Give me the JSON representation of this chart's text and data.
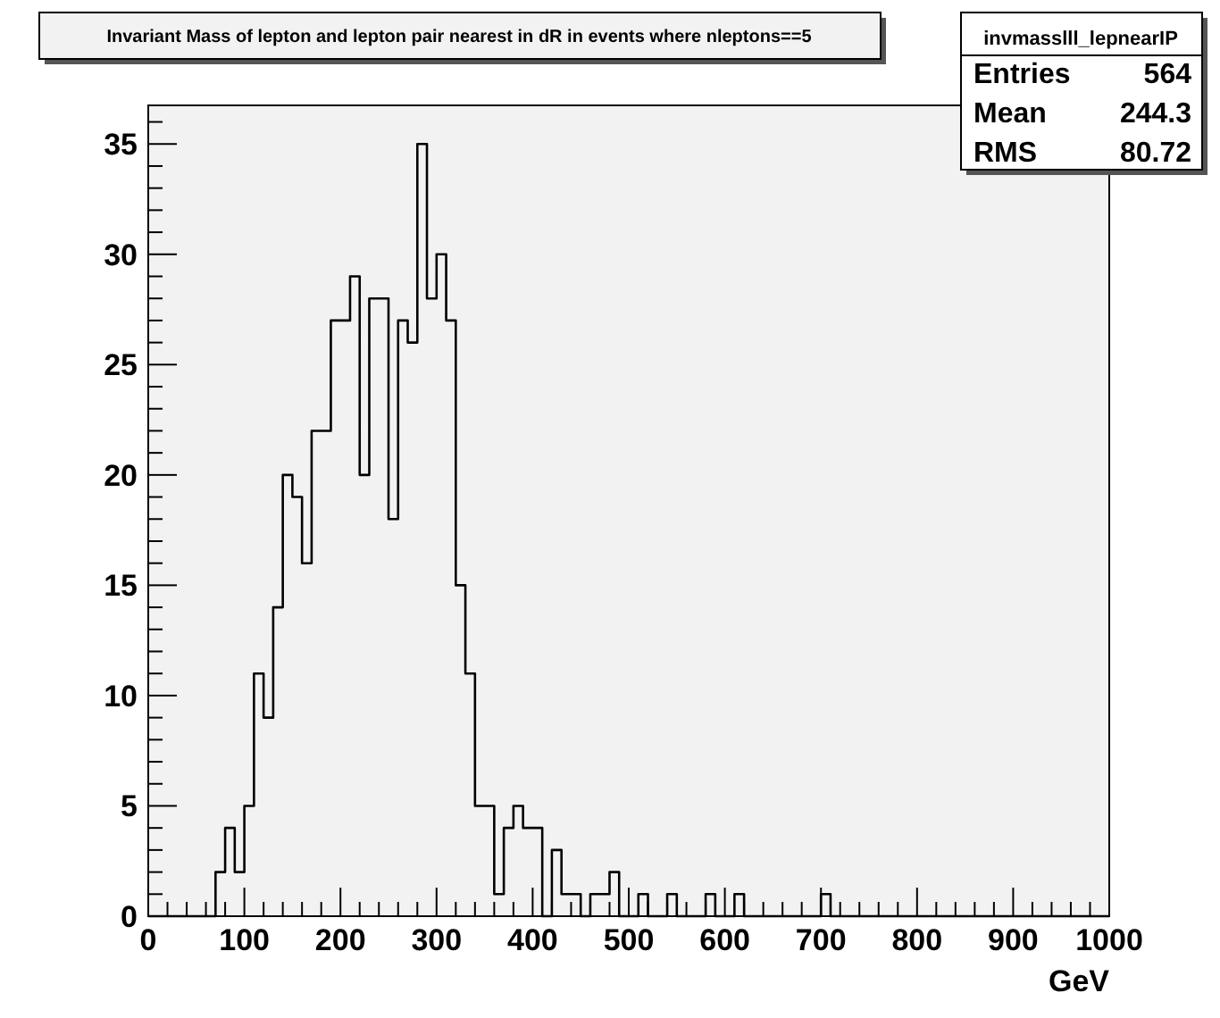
{
  "chart_data": {
    "type": "histogram",
    "title": "Invariant Mass of lepton and lepton pair nearest in dR in events where nleptons==5",
    "xlabel": "GeV",
    "annotations": [
      "invmasslll_lepnearIP",
      "Entries",
      "564",
      "Mean",
      "244.3",
      "RMS",
      "80.72"
    ],
    "color": "#000000",
    "bins": [
      0,
      10,
      20,
      30,
      40,
      50,
      60,
      70,
      80,
      90,
      100,
      110,
      120,
      130,
      140,
      150,
      160,
      170,
      180,
      190,
      200,
      210,
      220,
      230,
      240,
      250,
      260,
      270,
      280,
      290,
      300,
      310,
      320,
      330,
      340,
      350,
      360,
      370,
      380,
      390,
      400,
      410,
      420,
      430,
      440,
      450,
      460,
      470,
      480,
      490,
      500,
      510,
      520,
      530,
      540,
      550,
      560,
      570,
      580,
      590,
      600,
      610,
      620,
      630,
      640,
      650,
      660,
      670,
      680,
      690,
      700,
      710,
      720,
      730,
      740,
      750,
      760,
      770,
      780,
      790,
      800,
      810,
      820,
      830,
      840,
      850,
      860,
      870,
      880,
      890,
      900,
      910,
      920,
      930,
      940,
      950,
      960,
      970,
      980,
      990,
      1000
    ],
    "values": [
      0,
      0,
      0,
      0,
      0,
      0,
      0,
      2,
      4,
      2,
      5,
      11,
      9,
      14,
      20,
      19,
      16,
      22,
      22,
      27,
      27,
      29,
      20,
      28,
      28,
      18,
      27,
      26,
      35,
      28,
      30,
      27,
      15,
      11,
      5,
      5,
      1,
      4,
      5,
      4,
      4,
      0,
      3,
      1,
      1,
      0,
      1,
      1,
      2,
      0,
      0,
      1,
      0,
      0,
      1,
      0,
      0,
      0,
      1,
      0,
      0,
      1,
      0,
      0,
      0,
      0,
      0,
      0,
      0,
      0,
      1,
      0,
      0,
      0,
      0,
      0,
      0,
      0,
      0,
      0,
      0,
      0,
      0,
      0,
      0,
      0,
      0,
      0,
      0,
      0,
      0,
      0,
      0,
      0,
      0,
      0,
      0,
      0,
      0,
      0
    ],
    "xlim": [
      0,
      1000
    ],
    "ylim": [
      0,
      36.75
    ],
    "xticks": [
      0,
      {
        "value": 20,
        "label": null
      },
      {
        "value": 40,
        "label": null
      },
      {
        "value": 60,
        "label": null
      },
      {
        "value": 80,
        "label": null
      },
      100,
      {
        "value": 120,
        "label": null
      },
      {
        "value": 140,
        "label": null
      },
      {
        "value": 160,
        "label": null
      },
      {
        "value": 180,
        "label": null
      },
      200,
      {
        "value": 220,
        "label": null
      },
      {
        "value": 240,
        "label": null
      },
      {
        "value": 260,
        "label": null
      },
      {
        "value": 280,
        "label": null
      },
      300,
      {
        "value": 320,
        "label": null
      },
      {
        "value": 340,
        "label": null
      },
      {
        "value": 360,
        "label": null
      },
      {
        "value": 380,
        "label": null
      },
      400,
      {
        "value": 420,
        "label": null
      },
      {
        "value": 440,
        "label": null
      },
      {
        "value": 460,
        "label": null
      },
      {
        "value": 480,
        "label": null
      },
      500,
      {
        "value": 520,
        "label": null
      },
      {
        "value": 540,
        "label": null
      },
      {
        "value": 560,
        "label": null
      },
      {
        "value": 580,
        "label": null
      },
      600,
      {
        "value": 620,
        "label": null
      },
      {
        "value": 640,
        "label": null
      },
      {
        "value": 660,
        "label": null
      },
      {
        "value": 680,
        "label": null
      },
      700,
      {
        "value": 720,
        "label": null
      },
      {
        "value": 740,
        "label": null
      },
      {
        "value": 760,
        "label": null
      },
      {
        "value": 780,
        "label": null
      },
      800,
      {
        "value": 820,
        "label": null
      },
      {
        "value": 840,
        "label": null
      },
      {
        "value": 860,
        "label": null
      },
      {
        "value": 880,
        "label": null
      },
      900,
      {
        "value": 920,
        "label": null
      },
      {
        "value": 940,
        "label": null
      },
      {
        "value": 960,
        "label": null
      },
      {
        "value": 980,
        "label": null
      },
      1000
    ],
    "yticks": [
      0,
      {
        "value": 1,
        "label": null
      },
      {
        "value": 2,
        "label": null
      },
      {
        "value": 3,
        "label": null
      },
      {
        "value": 4,
        "label": null
      },
      5,
      {
        "value": 6,
        "label": null
      },
      {
        "value": 7,
        "label": null
      },
      {
        "value": 8,
        "label": null
      },
      {
        "value": 9,
        "label": null
      },
      10,
      {
        "value": 11,
        "label": null
      },
      {
        "value": 12,
        "label": null
      },
      {
        "value": 13,
        "label": null
      },
      {
        "value": 14,
        "label": null
      },
      15,
      {
        "value": 16,
        "label": null
      },
      {
        "value": 17,
        "label": null
      },
      {
        "value": 18,
        "label": null
      },
      {
        "value": 19,
        "label": null
      },
      20,
      {
        "value": 21,
        "label": null
      },
      {
        "value": 22,
        "label": null
      },
      {
        "value": 23,
        "label": null
      },
      {
        "value": 24,
        "label": null
      },
      25,
      {
        "value": 26,
        "label": null
      },
      {
        "value": 27,
        "label": null
      },
      {
        "value": 28,
        "label": null
      },
      {
        "value": 29,
        "label": null
      },
      30,
      {
        "value": 31,
        "label": null
      },
      {
        "value": 32,
        "label": null
      },
      {
        "value": 33,
        "label": null
      },
      {
        "value": 34,
        "label": null
      },
      35,
      {
        "value": 36,
        "label": null
      }
    ]
  }
}
